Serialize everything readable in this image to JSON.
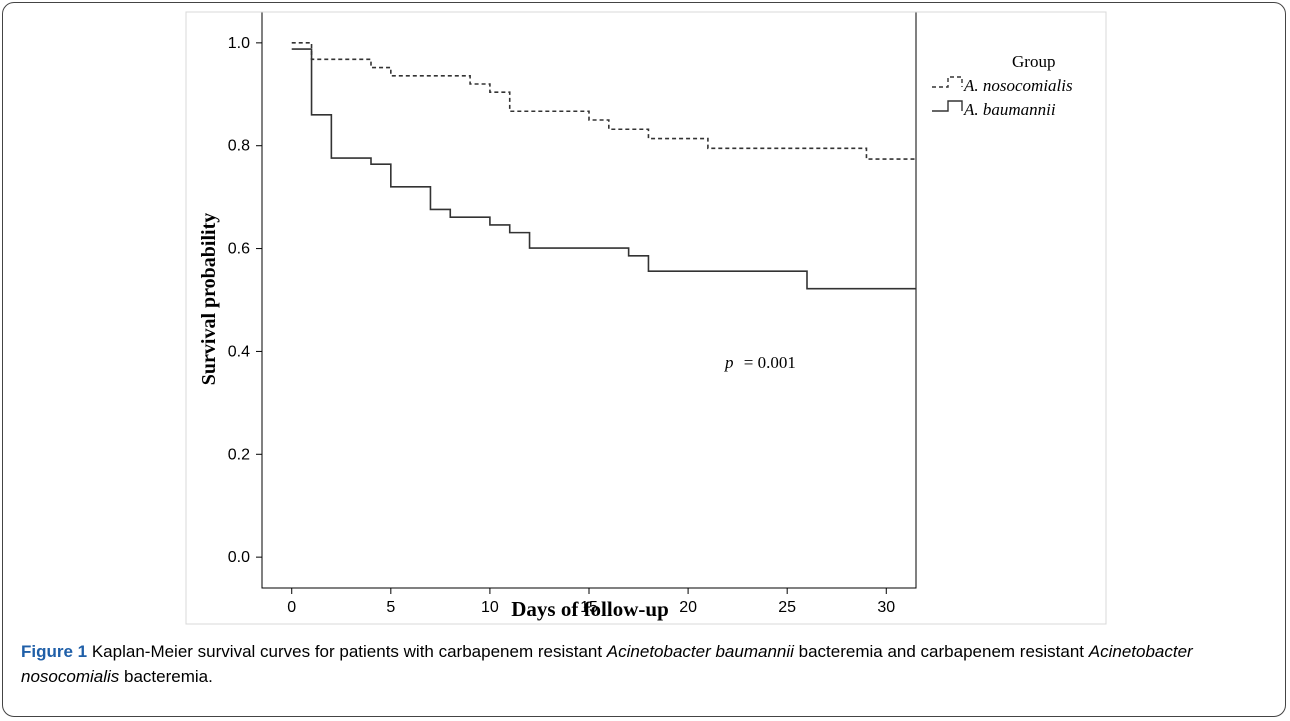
{
  "chart_data": {
    "type": "line",
    "step": true,
    "xlabel": "Days of follow-up",
    "ylabel": "Survival probability",
    "xlim": [
      -1.5,
      31.5
    ],
    "ylim": [
      -0.06,
      1.06
    ],
    "xticks": [
      0,
      5,
      10,
      15,
      20,
      25,
      30
    ],
    "yticks": [
      0.0,
      0.2,
      0.4,
      0.6,
      0.8,
      1.0
    ],
    "ytick_labels": [
      "0.0",
      "0.2",
      "0.4",
      "0.6",
      "0.8",
      "1.0"
    ],
    "grid": false,
    "legend": {
      "title": "Group",
      "placement": "right"
    },
    "annotation": {
      "prefix": "p",
      "text": "= 0.001",
      "x": 24,
      "y": 0.42
    },
    "series": [
      {
        "name": "A. nosocomialis",
        "style": "dashed",
        "x": [
          0,
          1,
          4,
          5,
          9,
          10,
          11,
          15,
          16,
          18,
          21,
          29,
          31.5
        ],
        "y": [
          1.0,
          0.968,
          0.952,
          0.936,
          0.92,
          0.904,
          0.867,
          0.85,
          0.832,
          0.814,
          0.795,
          0.774,
          0.774
        ]
      },
      {
        "name": "A. baumannii",
        "style": "solid",
        "x": [
          0,
          1,
          2,
          4,
          5,
          7,
          8,
          10,
          11,
          12,
          17,
          18,
          26,
          31.5
        ],
        "y": [
          0.988,
          0.86,
          0.776,
          0.764,
          0.72,
          0.676,
          0.661,
          0.646,
          0.631,
          0.601,
          0.586,
          0.556,
          0.522,
          0.522
        ]
      }
    ]
  },
  "caption": {
    "label": "Figure 1",
    "part1": " Kaplan-Meier survival curves for patients with carbapenem resistant ",
    "italic1": "Acinetobacter baumannii",
    "part2": " bacteremia and carbapenem resistant ",
    "italic2": "Acinetobacter nosocomialis",
    "part3": " bacteremia."
  }
}
